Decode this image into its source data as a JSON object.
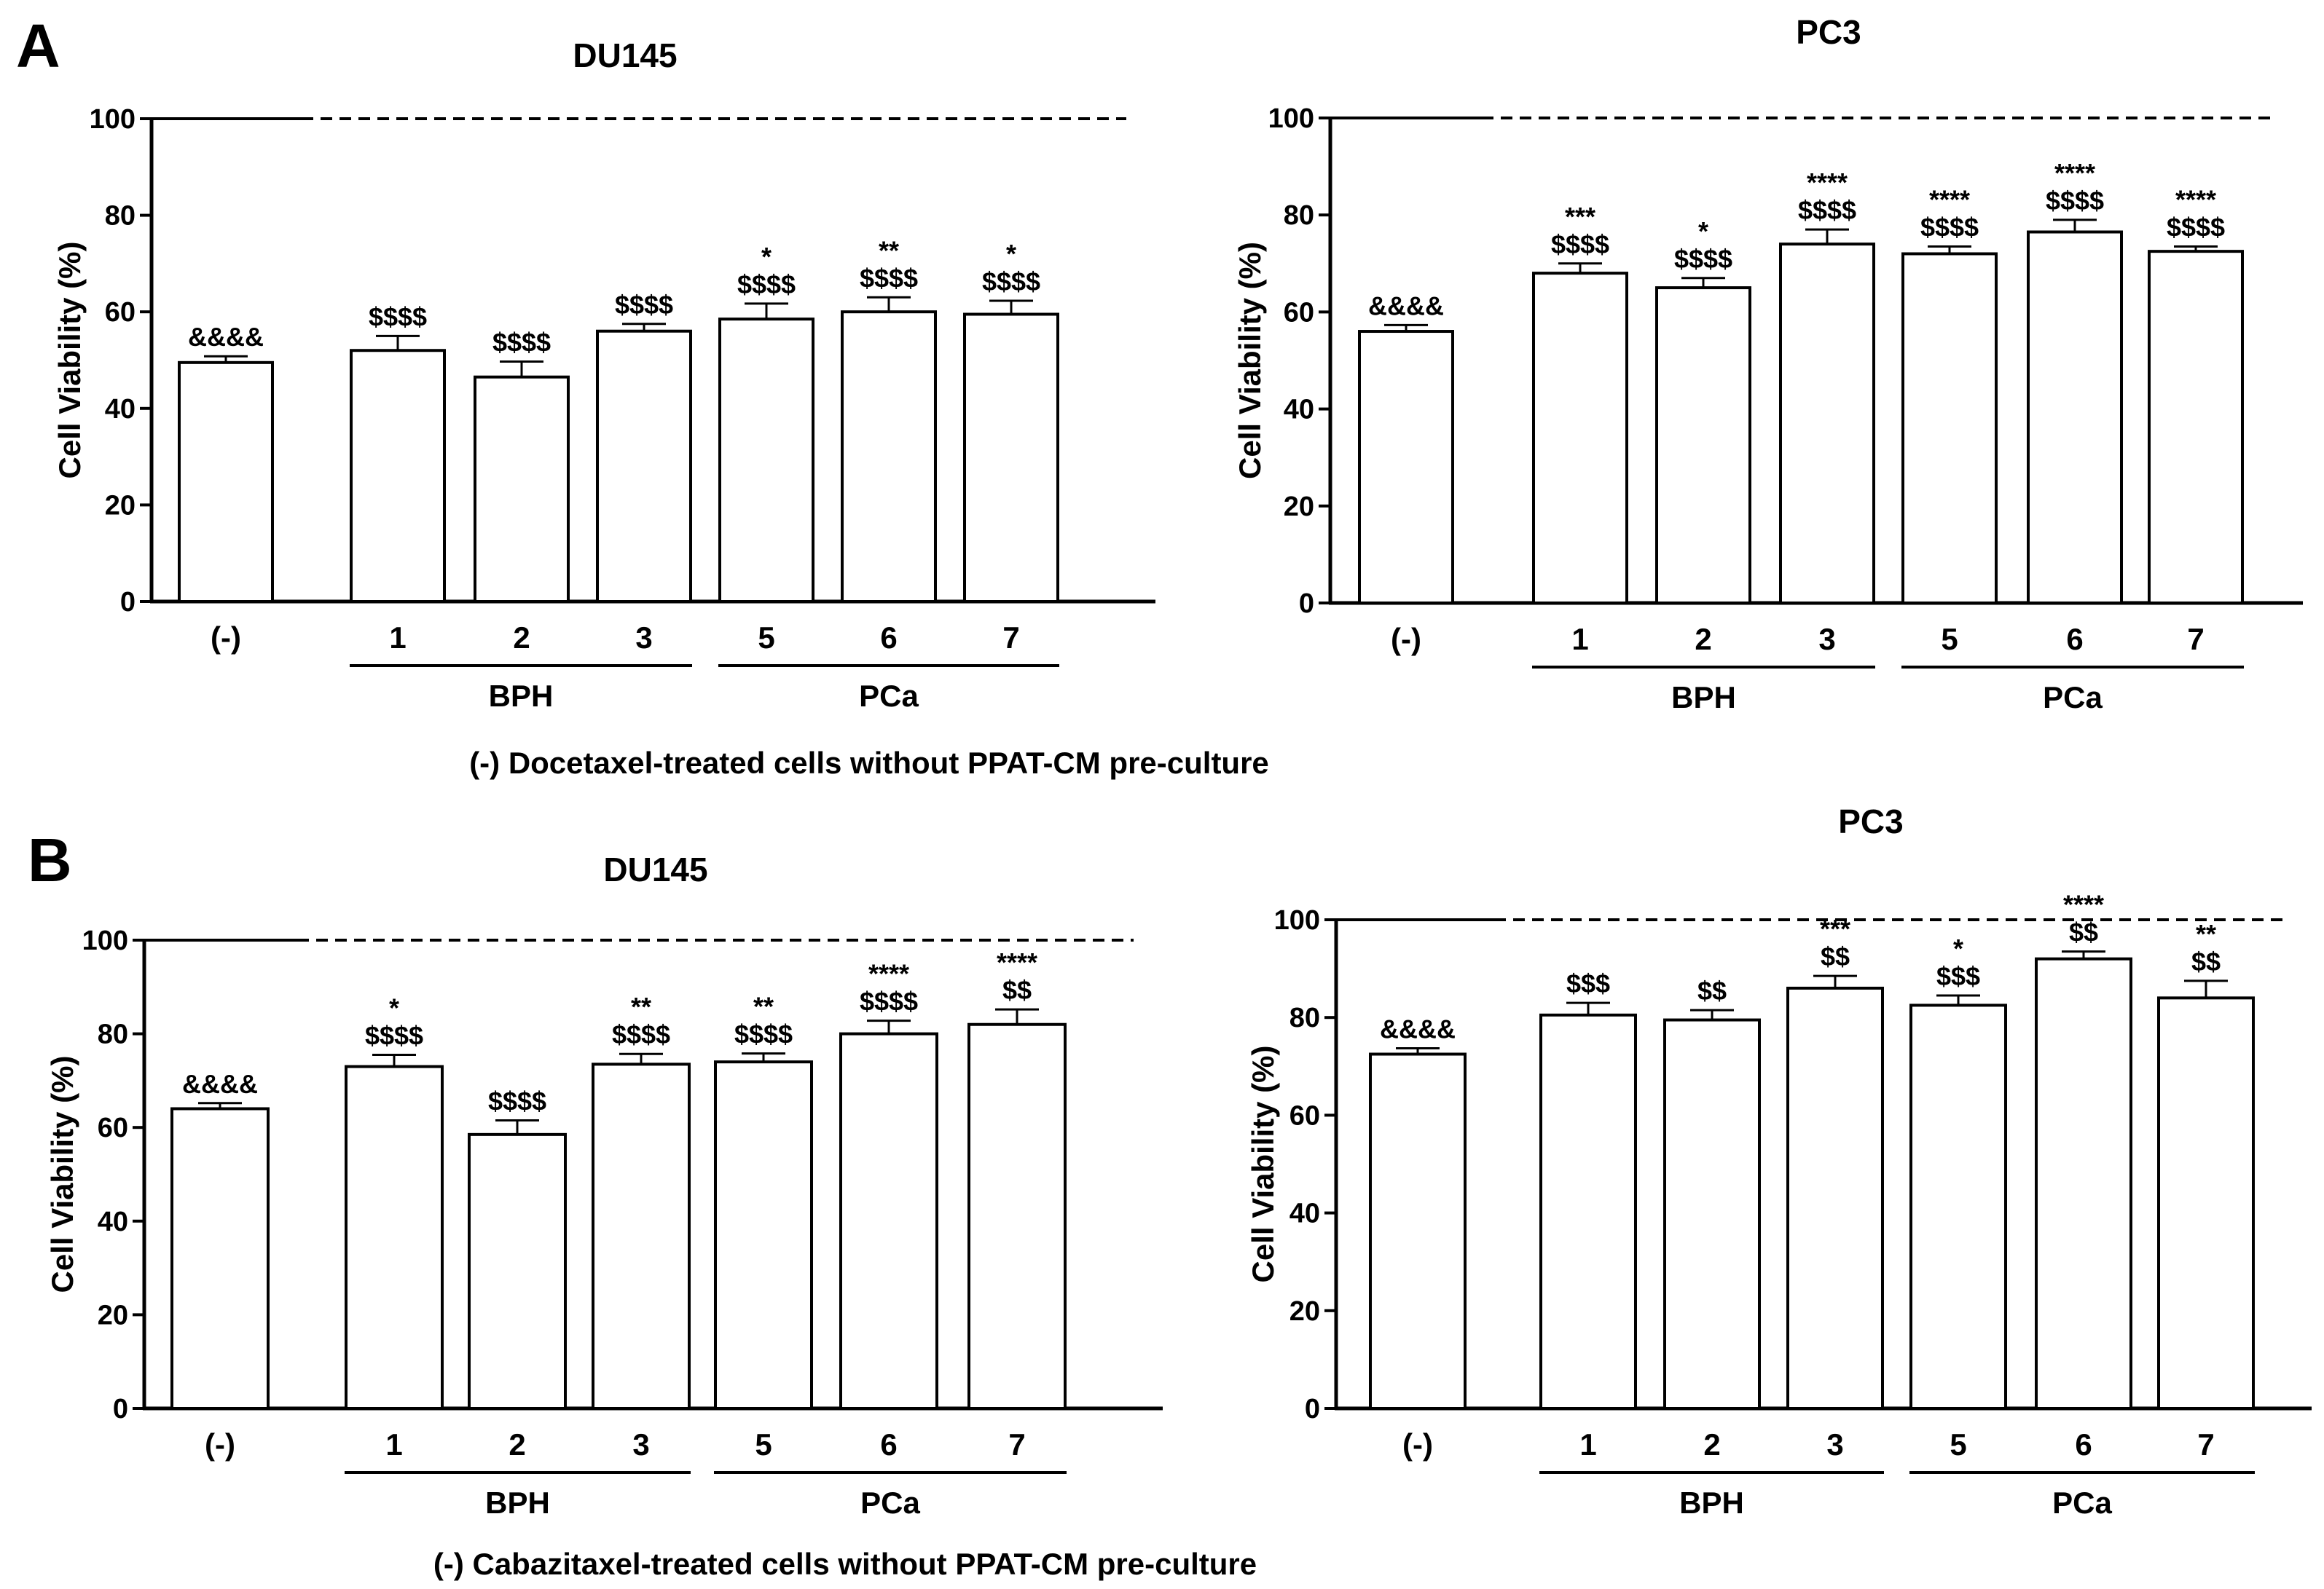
{
  "panels": [
    {
      "letter": "A",
      "caption": "(-) Docetaxel-treated cells without PPAT-CM pre-culture"
    },
    {
      "letter": "B",
      "caption": "(-) Cabazitaxel-treated cells without PPAT-CM pre-culture"
    }
  ],
  "chart_data": [
    {
      "type": "bar",
      "panel": "A",
      "title": "DU145",
      "ylabel": "Cell Viability (%)",
      "xlabel": "",
      "ylim": [
        0,
        100
      ],
      "yticks": [
        0,
        20,
        40,
        60,
        80,
        100
      ],
      "reference_line": 100,
      "categories": [
        "(-)",
        "1",
        "2",
        "3",
        "5",
        "6",
        "7"
      ],
      "values": [
        49.5,
        52,
        46.5,
        56,
        58.5,
        60,
        59.5
      ],
      "errors": [
        1.3,
        3,
        3.2,
        1.5,
        3.2,
        3,
        2.8
      ],
      "annotations": [
        [
          "&&&&"
        ],
        [
          "$$$$"
        ],
        [
          "$$$$"
        ],
        [
          "$$$$"
        ],
        [
          "*",
          "$$$$"
        ],
        [
          "**",
          "$$$$"
        ],
        [
          "*",
          "$$$$"
        ]
      ],
      "groups": [
        {
          "label": "BPH",
          "categories": [
            "1",
            "2",
            "3"
          ]
        },
        {
          "label": "PCa",
          "categories": [
            "5",
            "6",
            "7"
          ]
        }
      ]
    },
    {
      "type": "bar",
      "panel": "A",
      "title": "PC3",
      "ylabel": "Cell Viability (%)",
      "xlabel": "",
      "ylim": [
        0,
        100
      ],
      "yticks": [
        0,
        20,
        40,
        60,
        80,
        100
      ],
      "reference_line": 100,
      "categories": [
        "(-)",
        "1",
        "2",
        "3",
        "5",
        "6",
        "7"
      ],
      "values": [
        56,
        68,
        65,
        74,
        72,
        76.5,
        72.5
      ],
      "errors": [
        1.3,
        2,
        2,
        3,
        1.5,
        2.5,
        1
      ],
      "annotations": [
        [
          "&&&&"
        ],
        [
          "***",
          "$$$$"
        ],
        [
          "*",
          "$$$$"
        ],
        [
          "****",
          "$$$$"
        ],
        [
          "****",
          "$$$$"
        ],
        [
          "****",
          "$$$$"
        ],
        [
          "****",
          "$$$$"
        ]
      ],
      "groups": [
        {
          "label": "BPH",
          "categories": [
            "1",
            "2",
            "3"
          ]
        },
        {
          "label": "PCa",
          "categories": [
            "5",
            "6",
            "7"
          ]
        }
      ]
    },
    {
      "type": "bar",
      "panel": "B",
      "title": "DU145",
      "ylabel": "Cell Viability (%)",
      "xlabel": "",
      "ylim": [
        0,
        100
      ],
      "yticks": [
        0,
        20,
        40,
        60,
        80,
        100
      ],
      "reference_line": 100,
      "categories": [
        "(-)",
        "1",
        "2",
        "3",
        "5",
        "6",
        "7"
      ],
      "values": [
        64,
        73,
        58.5,
        73.5,
        74,
        80,
        82
      ],
      "errors": [
        1.2,
        2.5,
        3,
        2.2,
        1.8,
        2.8,
        3.2
      ],
      "annotations": [
        [
          "&&&&"
        ],
        [
          "*",
          "$$$$"
        ],
        [
          "$$$$"
        ],
        [
          "**",
          "$$$$"
        ],
        [
          "**",
          "$$$$"
        ],
        [
          "****",
          "$$$$"
        ],
        [
          "****",
          "$$"
        ]
      ],
      "groups": [
        {
          "label": "BPH",
          "categories": [
            "1",
            "2",
            "3"
          ]
        },
        {
          "label": "PCa",
          "categories": [
            "5",
            "6",
            "7"
          ]
        }
      ]
    },
    {
      "type": "bar",
      "panel": "B",
      "title": "PC3",
      "ylabel": "Cell Viability (%)",
      "xlabel": "",
      "ylim": [
        0,
        100
      ],
      "yticks": [
        0,
        20,
        40,
        60,
        80,
        100
      ],
      "reference_line": 100,
      "categories": [
        "(-)",
        "1",
        "2",
        "3",
        "5",
        "6",
        "7"
      ],
      "values": [
        72.5,
        80.5,
        79.5,
        86,
        82.5,
        92,
        84
      ],
      "errors": [
        1.2,
        2.5,
        2,
        2.5,
        2,
        1.5,
        3.5
      ],
      "annotations": [
        [
          "&&&&"
        ],
        [
          "$$$"
        ],
        [
          "$$"
        ],
        [
          "***",
          "$$"
        ],
        [
          "*",
          "$$$"
        ],
        [
          "****",
          "$$"
        ],
        [
          "**",
          "$$"
        ]
      ],
      "groups": [
        {
          "label": "BPH",
          "categories": [
            "1",
            "2",
            "3"
          ]
        },
        {
          "label": "PCa",
          "categories": [
            "5",
            "6",
            "7"
          ]
        }
      ]
    }
  ]
}
